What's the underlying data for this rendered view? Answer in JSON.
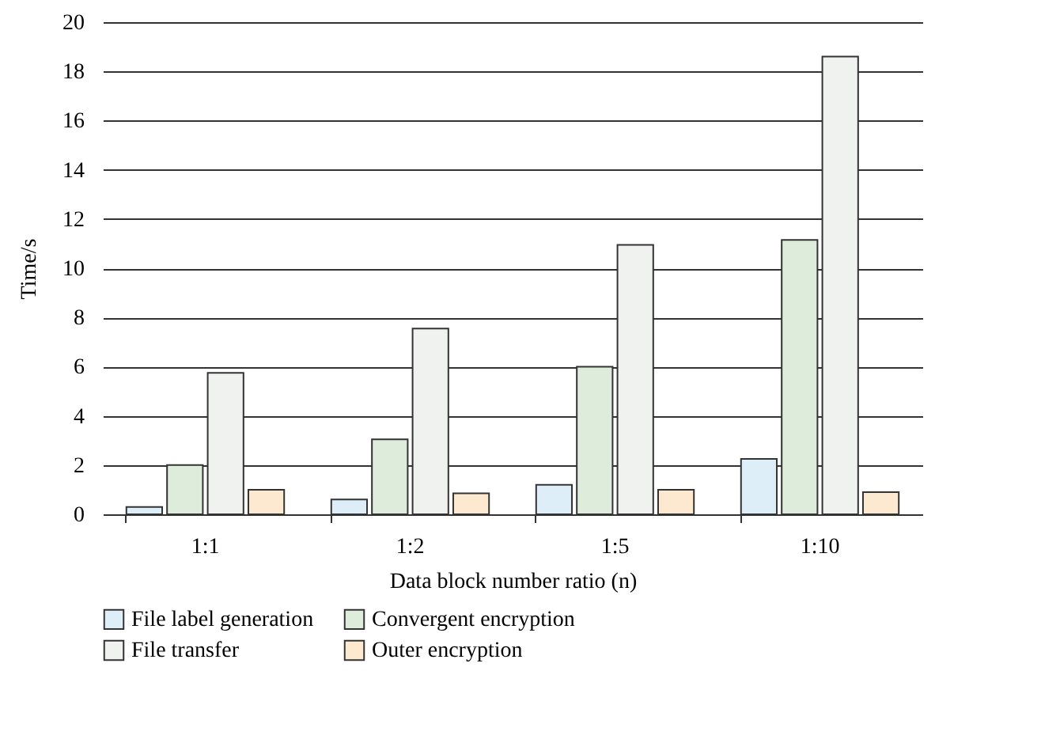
{
  "chart_data": {
    "type": "bar",
    "xlabel": "Data block number ratio (n)",
    "ylabel": "Time/s",
    "categories": [
      "1:1",
      "1:2",
      "1:5",
      "1:10"
    ],
    "series": [
      {
        "name": "File label generation",
        "color": "#ddeef8",
        "values": [
          0.3,
          0.6,
          1.2,
          2.25
        ]
      },
      {
        "name": "Convergent encryption",
        "color": "#deecdc",
        "values": [
          2.0,
          3.05,
          6.0,
          11.15
        ]
      },
      {
        "name": "File transfer",
        "color": "#f0f2f0",
        "values": [
          5.75,
          7.55,
          10.95,
          18.6
        ]
      },
      {
        "name": "Outer encryption",
        "color": "#fde9cf",
        "values": [
          1.0,
          0.85,
          1.0,
          0.9
        ]
      }
    ],
    "ylim": [
      0,
      20
    ],
    "yticks": [
      0,
      2,
      4,
      6,
      8,
      10,
      12,
      14,
      16,
      18,
      20
    ],
    "grid": "y",
    "legend": "bottom"
  }
}
